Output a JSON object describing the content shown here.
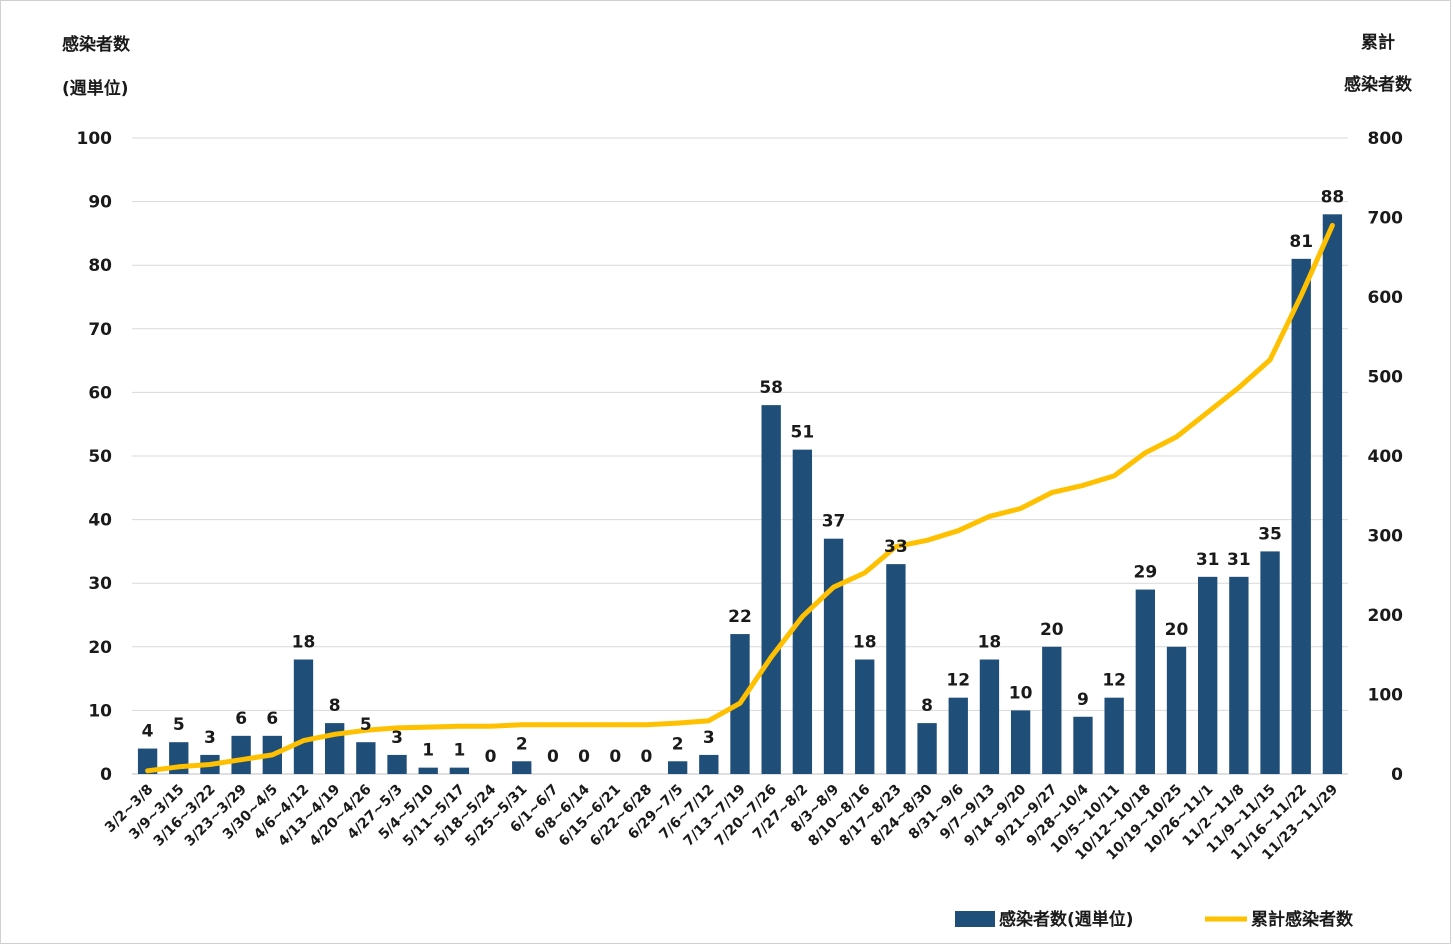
{
  "chart_data": {
    "type": "bar+line",
    "left_axis_title": [
      "感染者数",
      "(週単位)"
    ],
    "right_axis_title": [
      "累計",
      "感染者数"
    ],
    "left_ylim": [
      0,
      100
    ],
    "left_ticks": [
      0,
      10,
      20,
      30,
      40,
      50,
      60,
      70,
      80,
      90,
      100
    ],
    "right_ylim": [
      0,
      800
    ],
    "right_ticks": [
      0,
      100,
      200,
      300,
      400,
      500,
      600,
      700,
      800
    ],
    "grid": true,
    "legend_position": "bottom-right",
    "categories": [
      "3/2~3/8",
      "3/9~3/15",
      "3/16~3/22",
      "3/23~3/29",
      "3/30~4/5",
      "4/6~4/12",
      "4/13~4/19",
      "4/20~4/26",
      "4/27~5/3",
      "5/4~5/10",
      "5/11~5/17",
      "5/18~5/24",
      "5/25~5/31",
      "6/1~6/7",
      "6/8~6/14",
      "6/15~6/21",
      "6/22~6/28",
      "6/29~7/5",
      "7/6~7/12",
      "7/13~7/19",
      "7/20~7/26",
      "7/27~8/2",
      "8/3~8/9",
      "8/10~8/16",
      "8/17~8/23",
      "8/24~8/30",
      "8/31~9/6",
      "9/7~9/13",
      "9/14~9/20",
      "9/21~9/27",
      "9/28~10/4",
      "10/5~10/11",
      "10/12~10/18",
      "10/19~10/25",
      "10/26~11/1",
      "11/2~11/8",
      "11/9~11/15",
      "11/16~11/22",
      "11/23~11/29"
    ],
    "series": [
      {
        "name": "感染者数(週単位)",
        "type": "bar",
        "axis": "left",
        "color": "#1f4e79",
        "values": [
          4,
          5,
          3,
          6,
          6,
          18,
          8,
          5,
          3,
          1,
          1,
          0,
          2,
          0,
          0,
          0,
          0,
          2,
          3,
          22,
          58,
          51,
          37,
          18,
          33,
          8,
          12,
          18,
          10,
          20,
          9,
          12,
          29,
          20,
          31,
          31,
          35,
          81,
          88
        ]
      },
      {
        "name": "累計感染者数",
        "type": "line",
        "axis": "right",
        "color": "#ffc000",
        "values": [
          4,
          9,
          12,
          18,
          24,
          42,
          50,
          55,
          58,
          59,
          60,
          60,
          62,
          62,
          62,
          62,
          62,
          64,
          67,
          89,
          147,
          198,
          235,
          253,
          286,
          294,
          306,
          324,
          334,
          354,
          363,
          375,
          404,
          424,
          455,
          486,
          521,
          602,
          690
        ]
      }
    ]
  }
}
